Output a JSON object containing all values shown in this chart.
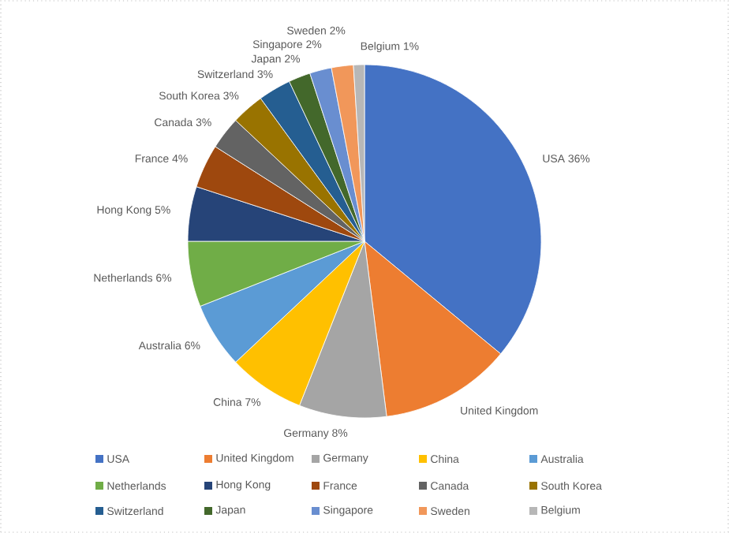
{
  "chart_data": {
    "type": "pie",
    "categories": [
      "USA",
      "United Kingdom",
      "Germany",
      "China",
      "Australia",
      "Netherlands",
      "Hong Kong",
      "France",
      "Canada",
      "South Korea",
      "Switzerland",
      "Japan",
      "Singapore",
      "Sweden",
      "Belgium"
    ],
    "values": [
      36,
      12,
      8,
      7,
      6,
      6,
      5,
      4,
      3,
      3,
      3,
      2,
      2,
      2,
      1
    ],
    "value_labels": [
      "36%",
      null,
      "8%",
      "7%",
      "6%",
      "6%",
      "5%",
      "4%",
      "3%",
      "3%",
      "3%",
      "2%",
      "2%",
      "2%",
      "1%"
    ],
    "colors": [
      "#4472c4",
      "#ed7d31",
      "#a5a5a5",
      "#ffc000",
      "#5b9bd5",
      "#70ad47",
      "#264478",
      "#9e480e",
      "#636363",
      "#997300",
      "#255e91",
      "#43682b",
      "#698ed0",
      "#f1975a",
      "#b7b7b7"
    ],
    "legend": "bottom"
  }
}
